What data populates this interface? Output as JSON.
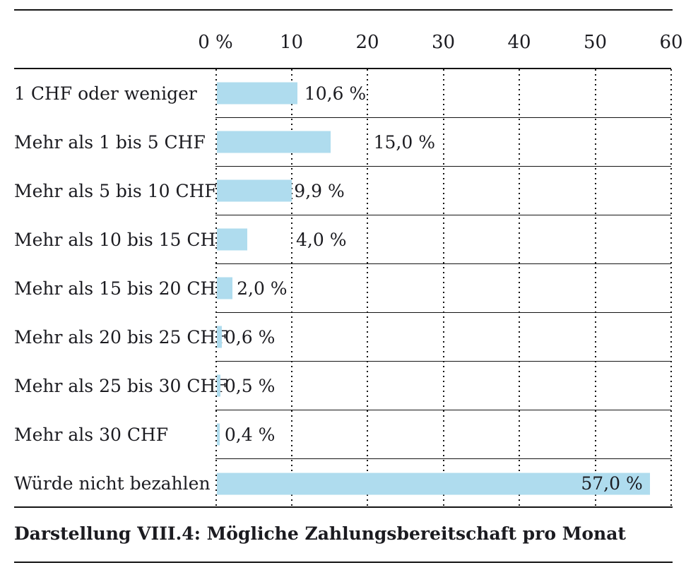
{
  "chart_data": {
    "type": "bar",
    "orientation": "horizontal",
    "caption": "Darstellung VIII.4: Mögliche Zahlungsbereitschaft pro Monat",
    "x_axis": {
      "min": 0,
      "max": 60,
      "tick_values": [
        0,
        10,
        20,
        30,
        40,
        50,
        60
      ],
      "tick_labels": [
        "0 %",
        "10",
        "20",
        "30",
        "40",
        "50",
        "60"
      ],
      "gridlines": "vertical-dotted",
      "row_separators": "solid"
    },
    "rows": [
      {
        "category": "1 CHF oder weniger",
        "value": 10.6,
        "value_label": "10,6 %",
        "label_x_units": 11.7,
        "label_inside": false
      },
      {
        "category": "Mehr als 1 bis 5 CHF",
        "value": 15.0,
        "value_label": "15,0 %",
        "label_x_units": 20.8,
        "label_inside": false
      },
      {
        "category": "Mehr als 5 bis 10 CHF",
        "value": 9.9,
        "value_label": "9,9 %",
        "label_x_units": 10.35,
        "label_inside": false
      },
      {
        "category": "Mehr als 10 bis 15 CHF",
        "value": 4.0,
        "value_label": "4,0 %",
        "label_x_units": 10.6,
        "label_inside": false
      },
      {
        "category": "Mehr als 15 bis 20 CHF",
        "value": 2.0,
        "value_label": "2,0 %",
        "label_x_units": 2.8,
        "label_inside": false
      },
      {
        "category": "Mehr als 20 bis 25 CHF",
        "value": 0.6,
        "value_label": "0,6 %",
        "label_x_units": 1.2,
        "label_inside": false
      },
      {
        "category": "Mehr als 25 bis 30 CHF",
        "value": 0.5,
        "value_label": "0,5 %",
        "label_x_units": 1.2,
        "label_inside": false
      },
      {
        "category": "Mehr als 30 CHF",
        "value": 0.4,
        "value_label": "0,4 %",
        "label_x_units": 1.2,
        "label_inside": false
      },
      {
        "category": "Würde nicht bezahlen",
        "value": 57.0,
        "value_label": "57,0 %",
        "label_x_units": null,
        "label_inside": true
      }
    ],
    "colors": {
      "bar": "#afdcee",
      "text": "#1b1b20",
      "line": "#141414"
    }
  }
}
